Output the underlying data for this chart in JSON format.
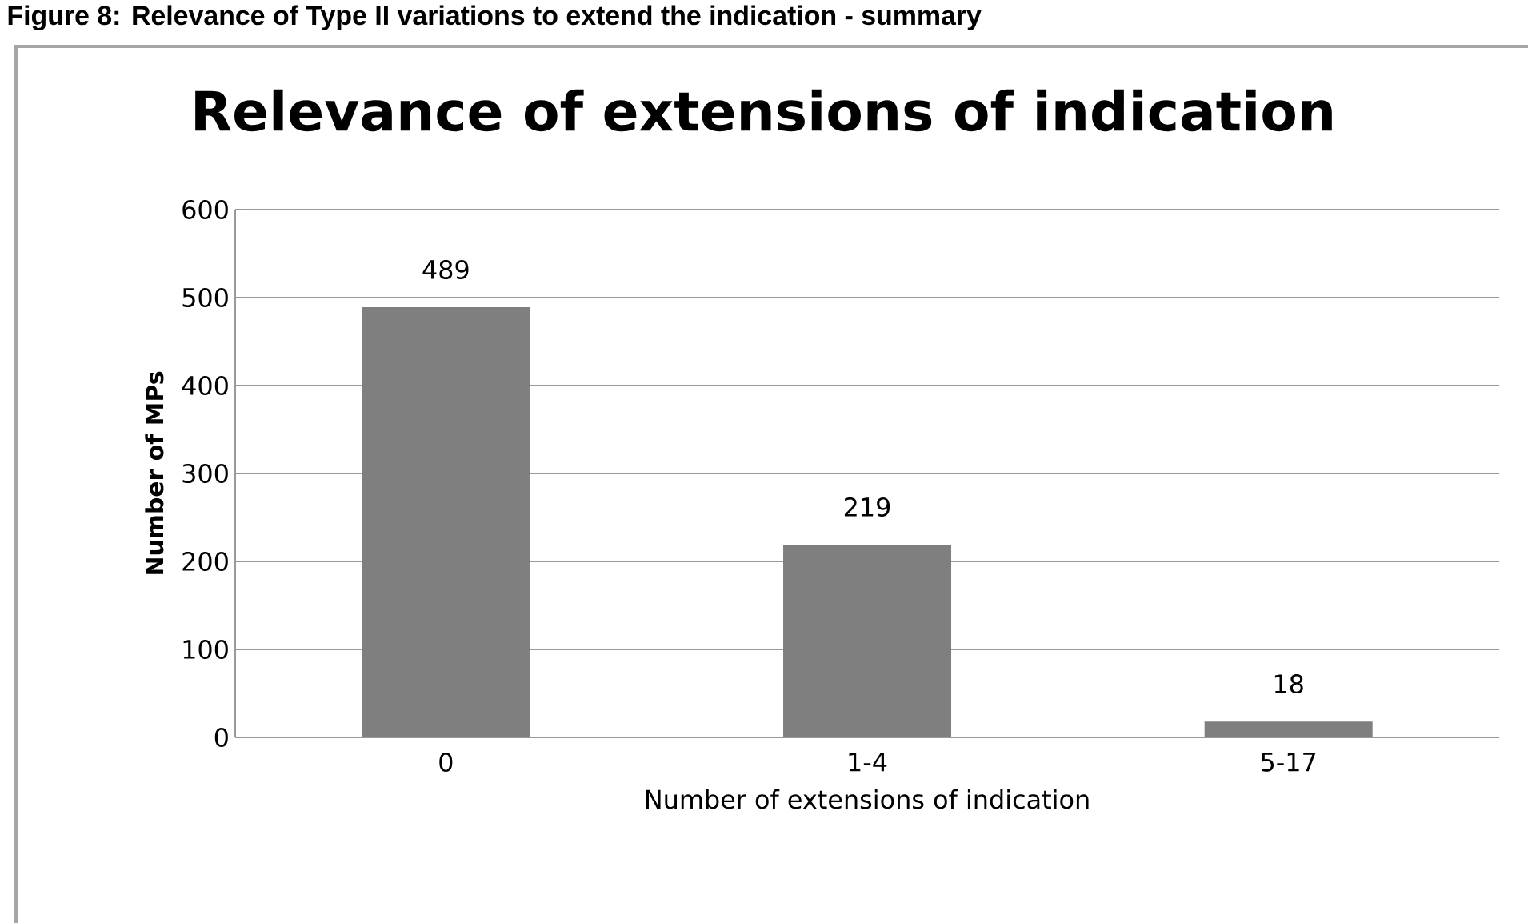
{
  "chart_data": {
    "type": "bar",
    "title": "Relevance of extensions of indication",
    "xlabel": "Number of extensions of indication",
    "ylabel": "Number of MPs",
    "annotations": [
      "Figure 8: Relevance of Type II variations to extend the indication - summary"
    ],
    "categories": [
      "0",
      "1-4",
      "5-17"
    ],
    "values": [
      489,
      219,
      18
    ],
    "color": "#7f7f7f",
    "ylim": [
      0,
      600
    ],
    "yticks": [
      0,
      100,
      200,
      300,
      400,
      500,
      600
    ],
    "grid": "y",
    "data_labels": true
  }
}
